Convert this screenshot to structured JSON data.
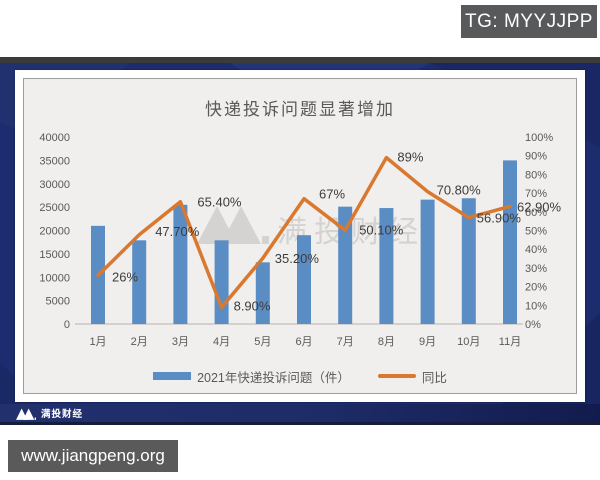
{
  "page": {
    "tg_badge": "TG: MYYJJPP",
    "url_badge": "www.jiangpeng.org",
    "footer_brand": "满投财经",
    "watermark_text": "满投财经"
  },
  "colors": {
    "bar": "#5b8dc5",
    "line": "#d9782e",
    "navy_bg": "#1d2c6e",
    "badge_bg": "#58595b",
    "chart_bg": "#f0efed",
    "axis_text": "#595959",
    "label_text": "#3c3c3c",
    "watermark": "#d2d1ce"
  },
  "chart_data": {
    "type": "bar",
    "title": "快递投诉问题显著增加",
    "categories": [
      "1月",
      "2月",
      "3月",
      "4月",
      "5月",
      "6月",
      "7月",
      "8月",
      "9月",
      "10月",
      "11月"
    ],
    "series": [
      {
        "name": "2021年快递投诉问题（件）",
        "type": "bar",
        "axis": "left",
        "values": [
          21000,
          17900,
          25500,
          17900,
          13200,
          19000,
          25100,
          24800,
          26600,
          26900,
          35000
        ]
      },
      {
        "name": "同比",
        "type": "line",
        "axis": "right",
        "values": [
          26,
          47.7,
          65.4,
          8.9,
          35.2,
          67,
          50.1,
          89,
          70.8,
          56.9,
          62.9
        ],
        "labels": [
          "26%",
          "47.70%",
          "65.40%",
          "8.90%",
          "35.20%",
          "67%",
          "50.10%",
          "89%",
          "70.80%",
          "56.90%",
          "62.90%"
        ]
      }
    ],
    "left_axis": {
      "min": 0,
      "max": 40000,
      "step": 5000,
      "ticks": [
        "0",
        "5000",
        "10000",
        "15000",
        "20000",
        "25000",
        "30000",
        "35000",
        "40000"
      ]
    },
    "right_axis": {
      "min": 0,
      "max": 100,
      "step": 10,
      "ticks": [
        "0%",
        "10%",
        "20%",
        "30%",
        "40%",
        "50%",
        "60%",
        "70%",
        "80%",
        "90%",
        "100%"
      ]
    },
    "grid": false,
    "legend_position": "bottom",
    "legend": [
      {
        "label": "2021年快递投诉问题（件）"
      },
      {
        "label": "同比"
      }
    ]
  }
}
